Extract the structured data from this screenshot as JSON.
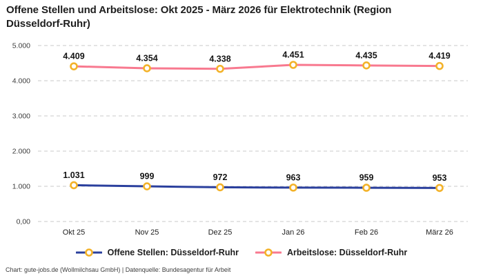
{
  "title": "Offene Stellen und Arbeitslose: Okt 2025 - März 2026 für Elektrotechnik (Region Düsseldorf-Ruhr)",
  "footer": "Chart: gute-jobs.de (Wollmilchsau GmbH) | Datenquelle: Bundesagentur für Arbeit",
  "colors": {
    "background": "#ffffff",
    "grid": "#c8c8c8",
    "title_text": "#1e1e1e",
    "axis_text": "#3c3c3c",
    "data_label_text": "#141414",
    "marker_fill": "#ffffff",
    "marker_ring": "#f3b229",
    "offene_stellen_line": "#2a3f9d",
    "arbeitslose_line": "#f8798f"
  },
  "chart_data": {
    "type": "line",
    "categories": [
      "Okt 25",
      "Nov 25",
      "Dez 25",
      "Jan 26",
      "Feb 26",
      "März 26"
    ],
    "series": [
      {
        "name": "Offene Stellen: Düsseldorf-Ruhr",
        "values": [
          1031,
          999,
          972,
          963,
          959,
          953
        ],
        "labels": [
          "1.031",
          "999",
          "972",
          "963",
          "959",
          "953"
        ],
        "line_color": "#2a3f9d",
        "marker_color": "#f3b229"
      },
      {
        "name": "Arbeitslose: Düsseldorf-Ruhr",
        "values": [
          4409,
          4354,
          4338,
          4451,
          4435,
          4419
        ],
        "labels": [
          "4.409",
          "4.354",
          "4.338",
          "4.451",
          "4.435",
          "4.419"
        ],
        "line_color": "#f8798f",
        "marker_color": "#f3b229"
      }
    ],
    "ylim": [
      0,
      5000
    ],
    "yticks": [
      {
        "value": 0,
        "label": "0,00"
      },
      {
        "value": 1000,
        "label": "1.000"
      },
      {
        "value": 2000,
        "label": "2.000"
      },
      {
        "value": 3000,
        "label": "3.000"
      },
      {
        "value": 4000,
        "label": "4.000"
      },
      {
        "value": 5000,
        "label": "5.000"
      }
    ],
    "grid": "horizontal-dashed",
    "legend_position": "bottom",
    "xlabel": "",
    "ylabel": ""
  }
}
